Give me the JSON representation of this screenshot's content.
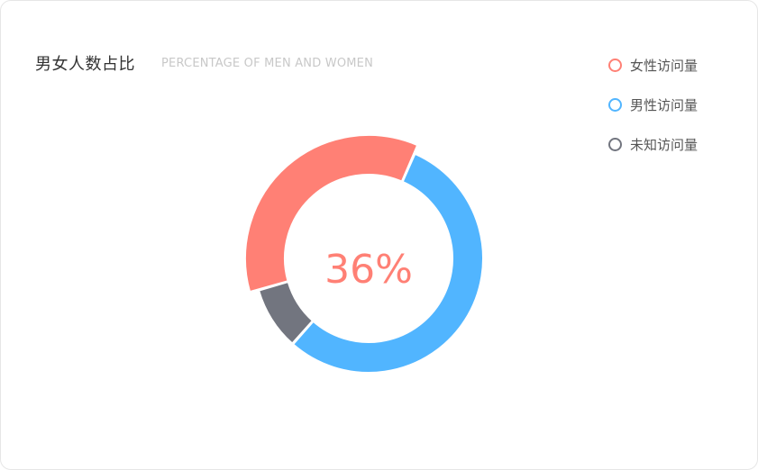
{
  "card": {
    "title": "男女人数占比",
    "subtitle": "PERCENTAGE OF MEN AND WOMEN"
  },
  "chart_data": {
    "type": "pie",
    "variant": "donut",
    "title": "男女人数占比",
    "subtitle": "PERCENTAGE OF MEN AND WOMEN",
    "center_label": "36%",
    "legend_position": "top-right",
    "series": [
      {
        "name": "女性访问量",
        "value": 36,
        "color": "#ff8075"
      },
      {
        "name": "男性访问量",
        "value": 55,
        "color": "#51b5ff"
      },
      {
        "name": "未知访问量",
        "value": 9,
        "color": "#72757f"
      }
    ]
  }
}
